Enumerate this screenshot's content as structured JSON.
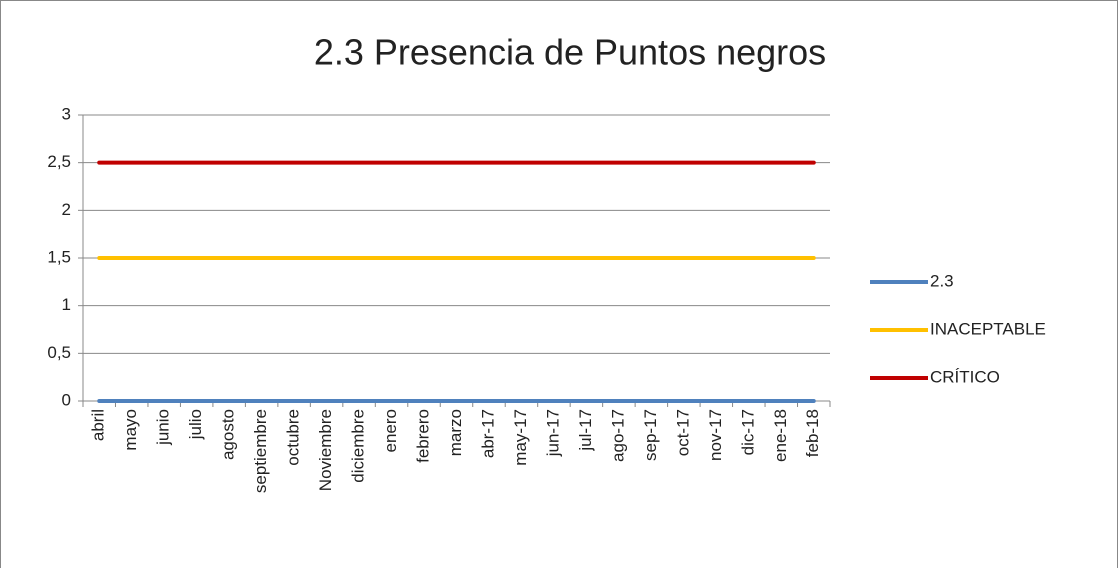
{
  "chart_data": {
    "type": "line",
    "title": "2.3 Presencia de Puntos negros",
    "categories": [
      "abril",
      "mayo",
      "junio",
      "julio",
      "agosto",
      "septiembre",
      "octubre",
      "Noviembre",
      "diciembre",
      "enero",
      "febrero",
      "marzo",
      "abr-17",
      "may-17",
      "jun-17",
      "jul-17",
      "ago-17",
      "sep-17",
      "oct-17",
      "nov-17",
      "dic-17",
      "ene-18",
      "feb-18"
    ],
    "series": [
      {
        "name": "2.3",
        "color": "#4f81bd",
        "values": [
          0,
          0,
          0,
          0,
          0,
          0,
          0,
          0,
          0,
          0,
          0,
          0,
          0,
          0,
          0,
          0,
          0,
          0,
          0,
          0,
          0,
          0,
          0
        ]
      },
      {
        "name": "INACEPTABLE",
        "color": "#ffc000",
        "values": [
          1.5,
          1.5,
          1.5,
          1.5,
          1.5,
          1.5,
          1.5,
          1.5,
          1.5,
          1.5,
          1.5,
          1.5,
          1.5,
          1.5,
          1.5,
          1.5,
          1.5,
          1.5,
          1.5,
          1.5,
          1.5,
          1.5,
          1.5
        ]
      },
      {
        "name": "CRÍTICO",
        "color": "#c00000",
        "values": [
          2.5,
          2.5,
          2.5,
          2.5,
          2.5,
          2.5,
          2.5,
          2.5,
          2.5,
          2.5,
          2.5,
          2.5,
          2.5,
          2.5,
          2.5,
          2.5,
          2.5,
          2.5,
          2.5,
          2.5,
          2.5,
          2.5,
          2.5
        ]
      }
    ],
    "ylim": [
      0,
      3
    ],
    "yticks": [
      0,
      {
        "value": 0.5,
        "label": "0,5"
      },
      1,
      {
        "value": 1.5,
        "label": "1,5"
      },
      2,
      {
        "value": 2.5,
        "label": "2,5"
      },
      3
    ],
    "grid": true,
    "legend": "right"
  }
}
